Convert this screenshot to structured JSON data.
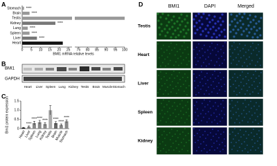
{
  "panel_labels": [
    "A",
    "B",
    "C",
    "D"
  ],
  "chart_data": [
    {
      "type": "hbar",
      "categories": [
        "Stomach",
        "Brain",
        "Testis",
        "Kidney",
        "Lung",
        "Spleen",
        "Liver",
        "Heart"
      ],
      "values": [
        1,
        4,
        100,
        18,
        3,
        4,
        8,
        22
      ],
      "colors": [
        "#999999",
        "#999999",
        "#999999",
        "#777777",
        "#999999",
        "#999999",
        "#777777",
        "#111111"
      ],
      "annotations": [
        "****",
        "****",
        null,
        "****",
        "****",
        "****",
        "****",
        null
      ],
      "xlabel": "BMI1 mRNA relative levels",
      "xlim": [
        0,
        100
      ],
      "axis_break": [
        27,
        73
      ],
      "xticks": [
        0,
        5,
        10,
        15,
        20,
        25,
        75,
        80,
        85,
        90,
        95,
        100
      ]
    },
    {
      "type": "bar",
      "categories": [
        "Heart",
        "Liver",
        "Spleen",
        "Lung",
        "Kidney",
        "Testis",
        "Brain",
        "Muscle",
        "Stomach"
      ],
      "values": [
        0.05,
        0.1,
        0.3,
        0.35,
        0.25,
        1.0,
        0.3,
        0.2,
        0.4
      ],
      "errors": [
        0.02,
        0.05,
        0.1,
        0.1,
        0.08,
        0.25,
        0.08,
        0.06,
        0.08
      ],
      "colors": [
        "#111111",
        "#888888",
        "#888888",
        "#888888",
        "#888888",
        "#aaaaaa",
        "#666666",
        "#888888",
        "#888888"
      ],
      "annotations": [
        null,
        "****",
        "****",
        "****",
        "****",
        null,
        "****",
        "****",
        "****"
      ],
      "ylabel": "Bmi1 protein expression",
      "ylim": [
        0,
        1.5
      ],
      "yticks": [
        0,
        0.5,
        {
          "value": 1,
          "label": "1.0"
        },
        1.5
      ]
    }
  ],
  "blot": {
    "rows": [
      "BMI1",
      "GAPDH"
    ],
    "lanes": [
      "Heart",
      "Liver",
      "Spleen",
      "Lung",
      "Kidney",
      "Testis",
      "Brain",
      "Muscle",
      "Stomach"
    ]
  },
  "micrographs": {
    "columns": [
      "BMI1",
      "DAPI",
      "Merged"
    ],
    "rows": [
      "Testis",
      "Heart",
      "Liver",
      "Spleen",
      "Kidney"
    ]
  }
}
